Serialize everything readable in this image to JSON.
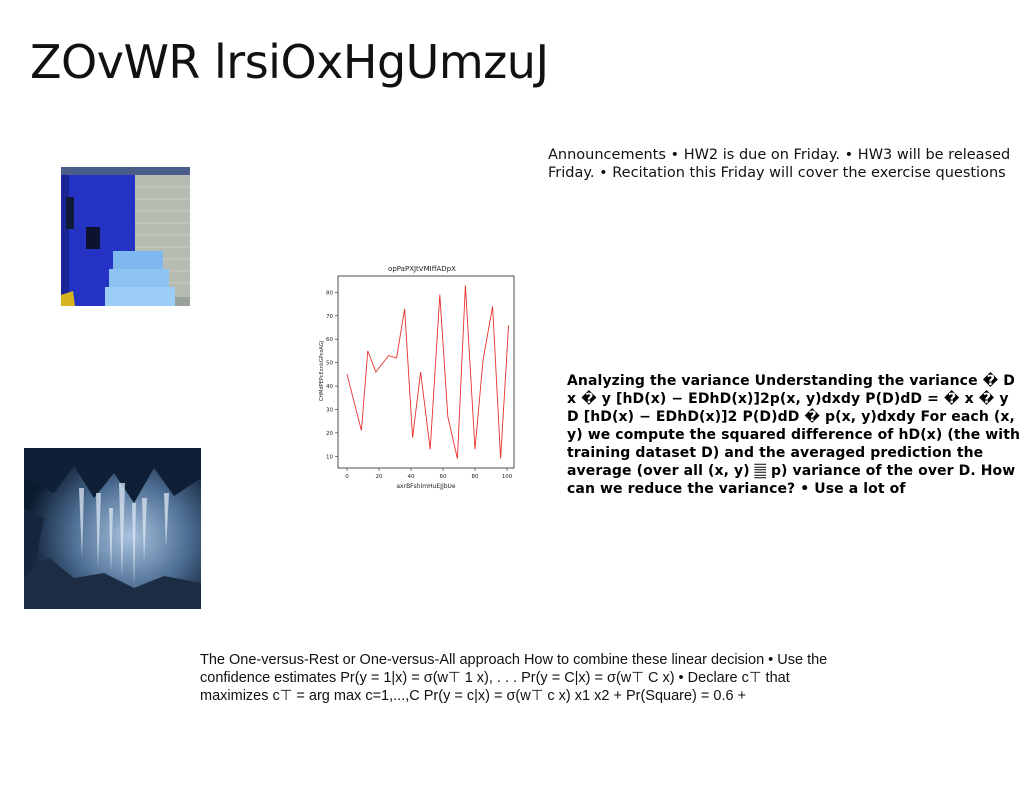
{
  "slide": {
    "title": "ZOvWR lrsiOxHgUmzuJ",
    "announcements": "Announcements • HW2 is due on Friday. • HW3 will be released Friday. • Recitation this Friday will cover the exercise questions",
    "variance_text": "Analyzing the variance Understanding the variance � D x � y [hD(x) − EDhD(x)]2p(x, y)dxdy P(D)dD = � x � y D [hD(x) − EDhD(x)]2 P(D)dD � p(x, y)dxdy For each (x, y) we compute the squared difference of hD(x) (the with training dataset D) and the averaged prediction the average (over all (x, y) 𝄛 p) variance of the over D. How can we reduce the variance? • Use a lot of",
    "ovr_text": "The One-versus-Rest or One-versus-All approach How to combine these linear decision • Use the confidence estimates Pr(y = 1|x) = σ(w⊤ 1 x), . . . Pr(y = C|x) = σ(w⊤ C x) • Declare c⊤ that maximizes c⊤ = arg max c=1,...,C Pr(y = c|x) = σ(w⊤ c x) x1 x2 + Pr(Square) = 0.6 +"
  },
  "chart_data": {
    "type": "line",
    "title": "opPaPXJtVMIffADpX",
    "xlabel": "axrBFshlmHuEJJbUe",
    "ylabel": "CHMdPEPcExnkGPcoAGJ",
    "xlim": [
      0,
      100
    ],
    "ylim": [
      5,
      87
    ],
    "x_ticks": [
      0,
      20,
      40,
      60,
      80,
      100
    ],
    "y_ticks": [
      10,
      20,
      30,
      40,
      50,
      60,
      70,
      80
    ],
    "line_color": "#e8312f",
    "grid": false,
    "series": [
      {
        "x": [
          0,
          9,
          13,
          18,
          26,
          31,
          36,
          41,
          46,
          52,
          58,
          63,
          69,
          74,
          80,
          85,
          91,
          96,
          101
        ],
        "values": [
          45,
          21,
          55,
          46,
          53,
          52,
          73,
          18,
          46,
          13,
          79,
          27,
          9,
          83,
          13,
          51,
          74,
          9,
          66
        ]
      }
    ]
  },
  "images": {
    "blue_building": "blue-building-photo",
    "cave": "cave-photo"
  }
}
